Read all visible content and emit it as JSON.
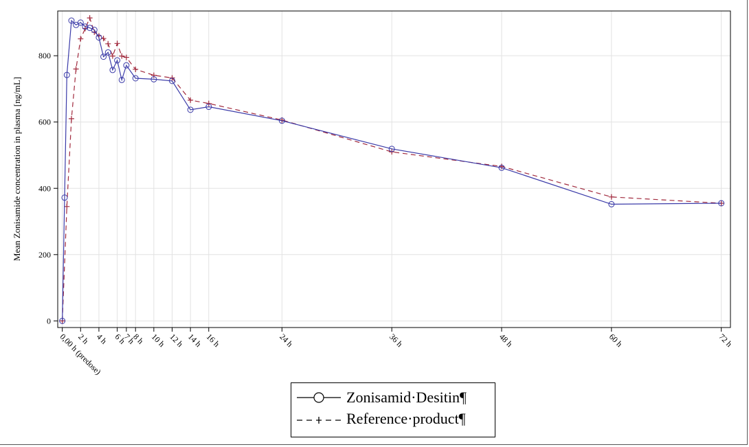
{
  "chart_data": {
    "type": "line",
    "ylabel": "Mean Zonisamide concentration in plasma [ng/mL]",
    "xlabel": "",
    "ylim": [
      -20,
      935
    ],
    "xlim": [
      -0.5,
      73
    ],
    "grid": true,
    "y_ticks": [
      0,
      200,
      400,
      600,
      800
    ],
    "x_ticks": [
      {
        "x": 0,
        "label": "0,00 h (predose)"
      },
      {
        "x": 2,
        "label": "2 h"
      },
      {
        "x": 4,
        "label": "4 h"
      },
      {
        "x": 6,
        "label": "6 h"
      },
      {
        "x": 7,
        "label": "7 h"
      },
      {
        "x": 8,
        "label": "8 h"
      },
      {
        "x": 10,
        "label": "10 h"
      },
      {
        "x": 12,
        "label": "12 h"
      },
      {
        "x": 14,
        "label": "14 h"
      },
      {
        "x": 16,
        "label": "16 h"
      },
      {
        "x": 24,
        "label": "24 h"
      },
      {
        "x": 36,
        "label": "36 h"
      },
      {
        "x": 48,
        "label": "48 h"
      },
      {
        "x": 60,
        "label": "60 h"
      },
      {
        "x": 72,
        "label": "72 h"
      }
    ],
    "series": [
      {
        "name": "Zonisamid Desitin",
        "color": "#3a3aa8",
        "line": "solid",
        "marker": "circle",
        "x": [
          0,
          0.25,
          0.5,
          1,
          1.5,
          2,
          2.5,
          3,
          3.5,
          4,
          4.5,
          5,
          5.5,
          6,
          6.5,
          7,
          8,
          10,
          12,
          14,
          16,
          24,
          36,
          48,
          60,
          72
        ],
        "y": [
          0,
          372,
          742,
          906,
          893,
          900,
          888,
          884,
          878,
          855,
          797,
          810,
          757,
          786,
          727,
          771,
          732,
          729,
          724,
          637,
          646,
          604,
          519,
          462,
          352,
          355
        ]
      },
      {
        "name": "Reference product",
        "color": "#a0283c",
        "line": "dashed",
        "marker": "plus",
        "x": [
          0,
          0.5,
          1,
          1.5,
          2,
          2.5,
          3,
          3.5,
          4,
          4.5,
          5,
          5.5,
          6,
          6.5,
          7,
          8,
          10,
          12,
          14,
          16,
          24,
          36,
          48,
          60,
          72
        ],
        "y": [
          0,
          345,
          610,
          760,
          851,
          882,
          914,
          871,
          860,
          852,
          836,
          799,
          837,
          799,
          795,
          759,
          741,
          733,
          666,
          656,
          606,
          510,
          466,
          374,
          355
        ]
      }
    ],
    "legend": {
      "position": "bottom",
      "entries": [
        "Zonisamid·Desitin¶",
        "Reference·product¶"
      ]
    }
  }
}
